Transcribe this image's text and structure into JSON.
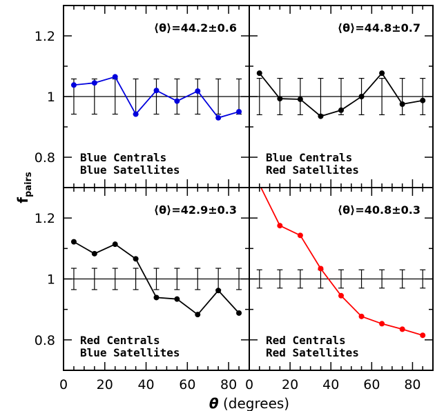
{
  "chart_data": {
    "type": "line",
    "xlabel_symbol": "θ",
    "xlabel_rest": " (degrees)",
    "ylabel_main": "f",
    "ylabel_sub": "pairs",
    "xlim": [
      0,
      90
    ],
    "ylim": [
      0.7,
      1.3
    ],
    "x_ticks": [
      0,
      20,
      40,
      60,
      80
    ],
    "y_ticks": [
      0.8,
      1,
      1.2
    ],
    "y_tick_labels": [
      "0.8",
      "1",
      "1.2"
    ],
    "reference_line": 1,
    "x": [
      5,
      15,
      25,
      35,
      45,
      55,
      65,
      75,
      85
    ],
    "panels": [
      {
        "label_line1": "Blue Centrals",
        "label_line2": "Blue Satellites",
        "mean_label": "⟨θ⟩=44.2±0.6",
        "color": "#0000dd",
        "values": [
          1.038,
          1.045,
          1.065,
          0.942,
          1.02,
          0.985,
          1.018,
          0.93,
          0.95
        ],
        "err_low": [
          0.942,
          0.942,
          0.942,
          0.942,
          0.942,
          0.942,
          0.942,
          0.942,
          0.942
        ],
        "err_high": [
          1.058,
          1.058,
          1.058,
          1.058,
          1.058,
          1.058,
          1.058,
          1.058,
          1.058
        ]
      },
      {
        "label_line1": "Blue Centrals",
        "label_line2": "Red Satellites",
        "mean_label": "⟨θ⟩=44.8±0.7",
        "color": "#000000",
        "values": [
          1.077,
          0.993,
          0.991,
          0.935,
          0.955,
          1.0,
          1.077,
          0.975,
          0.987
        ],
        "err_low": [
          0.94,
          0.94,
          0.94,
          0.94,
          0.94,
          0.94,
          0.94,
          0.94,
          0.94
        ],
        "err_high": [
          1.06,
          1.06,
          1.06,
          1.06,
          1.06,
          1.06,
          1.06,
          1.06,
          1.06
        ]
      },
      {
        "label_line1": "Red Centrals",
        "label_line2": "Blue Satellites",
        "mean_label": "⟨θ⟩=42.9±0.3",
        "color": "#000000",
        "values": [
          1.122,
          1.083,
          1.114,
          1.066,
          0.939,
          0.934,
          0.883,
          0.962,
          0.888
        ],
        "err_low": [
          0.965,
          0.965,
          0.965,
          0.965,
          0.965,
          0.965,
          0.965,
          0.965,
          0.965
        ],
        "err_high": [
          1.035,
          1.035,
          1.035,
          1.035,
          1.035,
          1.035,
          1.035,
          1.035,
          1.035
        ]
      },
      {
        "label_line1": "Red Centrals",
        "label_line2": "Red Satellites",
        "mean_label": "⟨θ⟩=40.8±0.3",
        "color": "#ff0000",
        "values": [
          1.31,
          1.175,
          1.143,
          1.034,
          0.945,
          0.877,
          0.853,
          0.835,
          0.815
        ],
        "err_low": [
          0.97,
          0.97,
          0.97,
          0.97,
          0.97,
          0.97,
          0.97,
          0.97,
          0.97
        ],
        "err_high": [
          1.03,
          1.03,
          1.03,
          1.03,
          1.03,
          1.03,
          1.03,
          1.03,
          1.03
        ]
      }
    ]
  }
}
